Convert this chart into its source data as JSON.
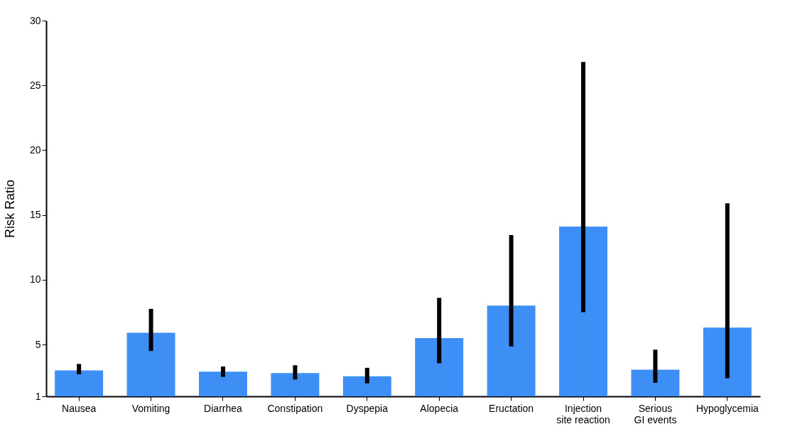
{
  "chart_data": {
    "type": "bar",
    "ylabel": "Risk Ratio",
    "categories": [
      "Nausea",
      "Vomiting",
      "Diarrhea",
      "Constipation",
      "Dyspepia",
      "Alopecia",
      "Eructation",
      "Injection site reaction",
      "Serious GI events",
      "Hypoglycemia"
    ],
    "values": [
      3.0,
      5.9,
      2.9,
      2.8,
      2.55,
      5.5,
      8.0,
      14.1,
      3.05,
      6.3
    ],
    "errors": [
      [
        2.7,
        3.5
      ],
      [
        4.5,
        7.75
      ],
      [
        2.5,
        3.3
      ],
      [
        2.3,
        3.4
      ],
      [
        2.0,
        3.2
      ],
      [
        3.55,
        8.6
      ],
      [
        4.85,
        13.45
      ],
      [
        7.5,
        26.8
      ],
      [
        2.05,
        4.6
      ],
      [
        2.4,
        15.9
      ]
    ],
    "color": "#3d8ff5",
    "ylim": [
      1,
      30
    ],
    "yticks": [
      1,
      5,
      10,
      15,
      20,
      25,
      30
    ],
    "grid": false
  }
}
